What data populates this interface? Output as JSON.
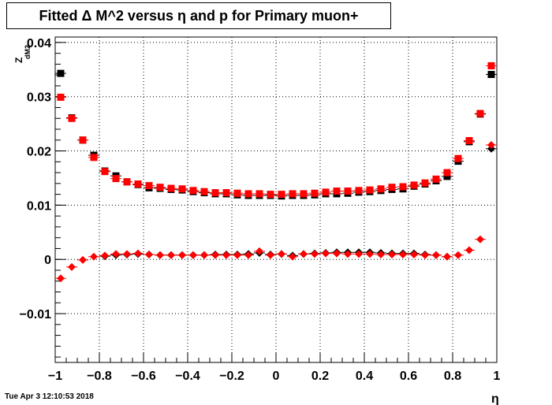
{
  "title": "Fitted Δ M^2 versus η and p for Primary muon+",
  "timestamp": "Tue Apr  3 12:10:53 2018",
  "chart_data": {
    "type": "scatter",
    "title": "Fitted Δ M^2 versus η and p for Primary muon+",
    "xlabel": "η",
    "ylabel": "Z",
    "ylabel_sub": "dM2",
    "xlim": [
      -1,
      1
    ],
    "ylim": [
      -0.019,
      0.041
    ],
    "grid": true,
    "x_ticks": [
      -1,
      -0.8,
      -0.6,
      -0.4,
      -0.2,
      0,
      0.2,
      0.4,
      0.6,
      0.8,
      1
    ],
    "x_tick_labels": [
      "−1",
      "−0.8",
      "−0.6",
      "−0.4",
      "−0.2",
      "0",
      "0.2",
      "0.4",
      "0.6",
      "0.8",
      "1"
    ],
    "y_ticks": [
      -0.01,
      0,
      0.01,
      0.02,
      0.03,
      0.04
    ],
    "y_tick_labels": [
      "−0.01",
      "0",
      "0.01",
      "0.02",
      "0.03",
      "0.04"
    ],
    "x": [
      -0.975,
      -0.925,
      -0.875,
      -0.825,
      -0.775,
      -0.725,
      -0.675,
      -0.625,
      -0.575,
      -0.525,
      -0.475,
      -0.425,
      -0.375,
      -0.325,
      -0.275,
      -0.225,
      -0.175,
      -0.125,
      -0.075,
      -0.025,
      0.025,
      0.075,
      0.125,
      0.175,
      0.225,
      0.275,
      0.325,
      0.375,
      0.425,
      0.475,
      0.525,
      0.575,
      0.625,
      0.675,
      0.725,
      0.775,
      0.825,
      0.875,
      0.925,
      0.975
    ],
    "series": [
      {
        "color": "#000000",
        "marker": "square",
        "values": [
          0.0343,
          0.0261,
          0.022,
          0.0192,
          0.0163,
          0.0154,
          0.0143,
          0.0138,
          0.0132,
          0.0131,
          0.0129,
          0.0128,
          0.0125,
          0.0123,
          0.0121,
          0.0121,
          0.0119,
          0.0118,
          0.0118,
          0.0118,
          0.0117,
          0.0118,
          0.0118,
          0.0119,
          0.0121,
          0.0121,
          0.0122,
          0.0124,
          0.0125,
          0.0127,
          0.0129,
          0.013,
          0.0135,
          0.0139,
          0.0145,
          0.0153,
          0.0181,
          0.0217,
          0.0268,
          0.0341
        ]
      },
      {
        "color": "#ff0000",
        "marker": "square",
        "values": [
          0.0299,
          0.026,
          0.022,
          0.0188,
          0.0162,
          0.0149,
          0.0143,
          0.0139,
          0.0136,
          0.0133,
          0.0131,
          0.013,
          0.0127,
          0.0125,
          0.0123,
          0.0123,
          0.0122,
          0.0121,
          0.0121,
          0.012,
          0.012,
          0.0121,
          0.0121,
          0.0122,
          0.0124,
          0.0126,
          0.0126,
          0.0127,
          0.0128,
          0.013,
          0.0133,
          0.0134,
          0.0137,
          0.0141,
          0.0148,
          0.016,
          0.0186,
          0.0219,
          0.0269,
          0.0357
        ]
      },
      {
        "color": "#000000",
        "marker": "diamond",
        "values": [
          null,
          null,
          null,
          null,
          0.0006,
          0.0008,
          0.0009,
          0.001,
          0.0009,
          0.0008,
          0.0008,
          0.0008,
          0.0008,
          0.0008,
          0.0009,
          0.0009,
          0.0009,
          0.001,
          0.0012,
          0.0009,
          0.001,
          0.0007,
          0.001,
          0.0011,
          0.0012,
          0.0013,
          0.0013,
          0.0013,
          0.0013,
          0.0012,
          0.0011,
          0.0011,
          0.0011,
          0.0009,
          0.0008,
          0.0005,
          null,
          null,
          null,
          0.0204
        ]
      },
      {
        "color": "#ff0000",
        "marker": "diamond",
        "values": [
          -0.0035,
          -0.0014,
          -0.0001,
          0.0005,
          0.0007,
          0.001,
          0.001,
          0.0011,
          0.0009,
          0.0008,
          0.0008,
          0.0008,
          0.0008,
          0.0008,
          0.0008,
          0.0008,
          0.0008,
          0.0008,
          0.0015,
          0.0008,
          0.001,
          0.0005,
          0.001,
          0.001,
          0.0011,
          0.0011,
          0.001,
          0.001,
          0.001,
          0.0009,
          0.0009,
          0.0009,
          0.0009,
          0.0008,
          0.0008,
          0.0005,
          0.0008,
          0.0017,
          0.0037,
          0.0211
        ]
      }
    ]
  }
}
